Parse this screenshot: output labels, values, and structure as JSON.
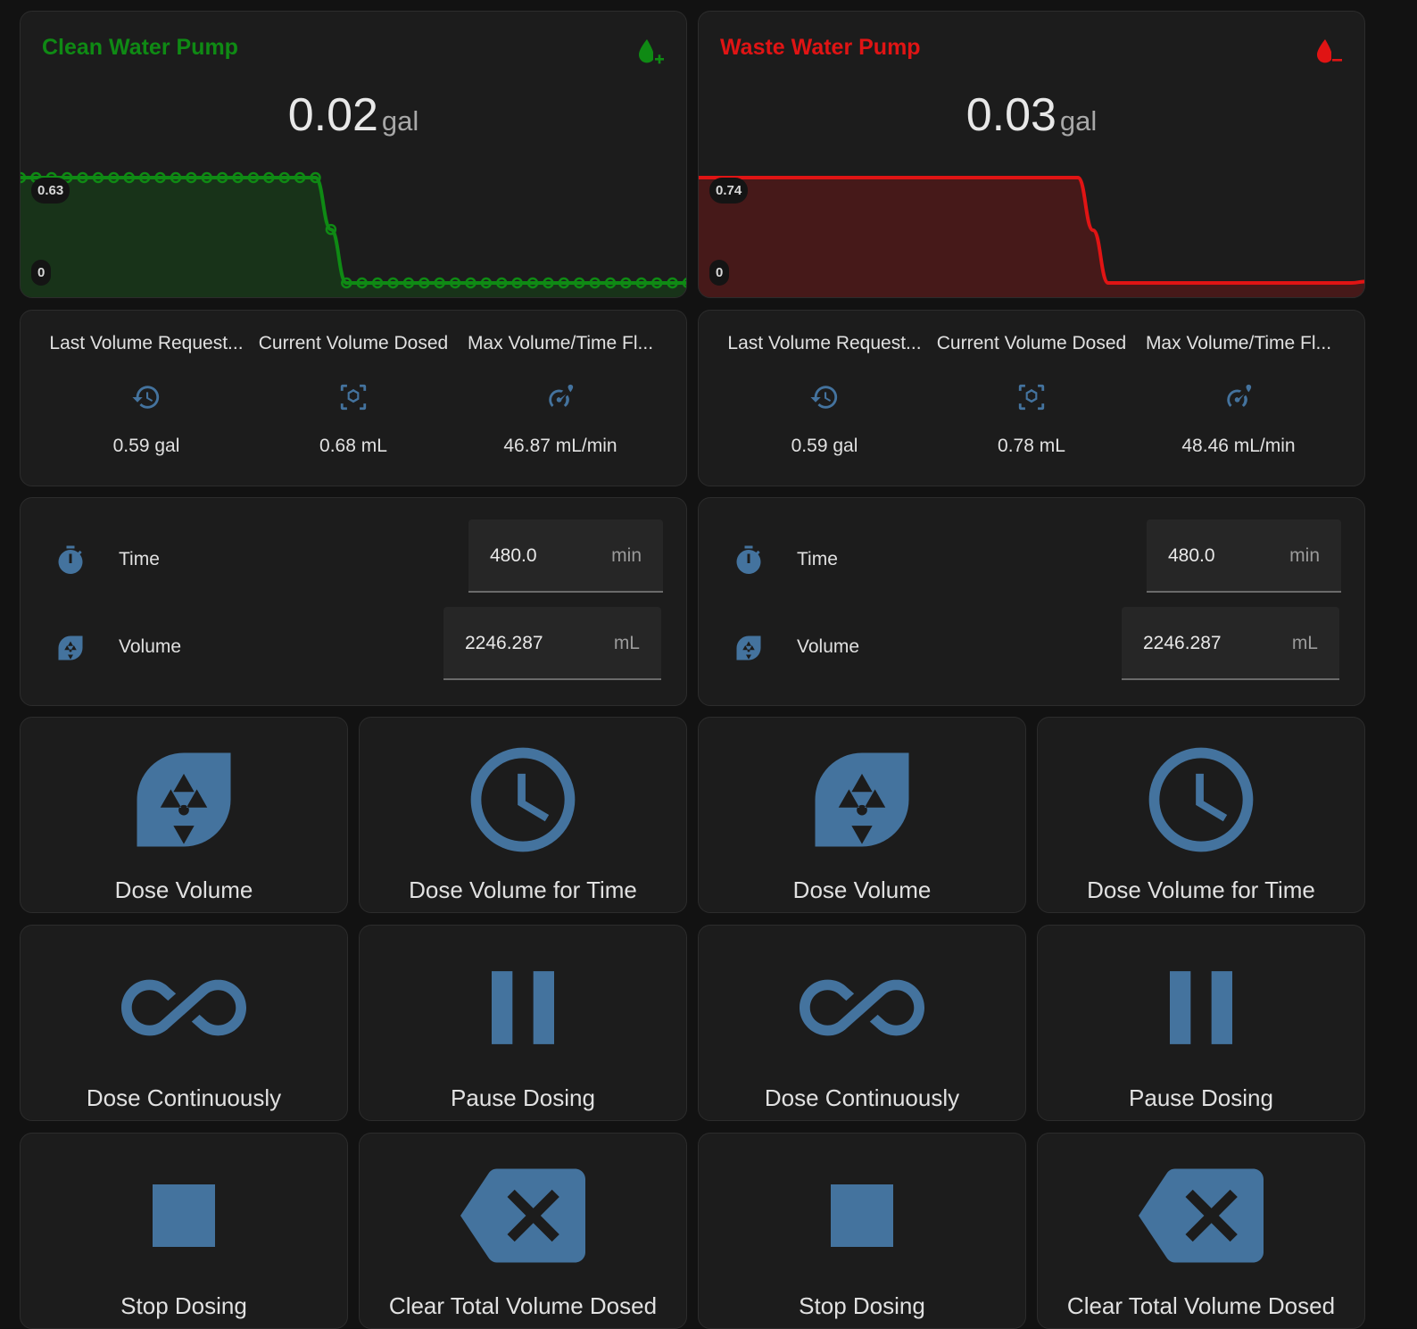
{
  "clean": {
    "title": "Clean Water Pump",
    "value": "0.02",
    "unit": "gal",
    "y_max_label": "0.63",
    "y_min_label": "0",
    "color": "#0f8a14",
    "icon": "water-plus-icon",
    "glance": [
      {
        "name": "Last Volume Request...",
        "icon": "history-icon",
        "state": "0.59 gal"
      },
      {
        "name": "Current Volume Dosed",
        "icon": "cube-scan-icon",
        "state": "0.68 mL"
      },
      {
        "name": "Max Volume/Time Fl...",
        "icon": "speedometer-icon",
        "state": "46.87 mL/min"
      }
    ],
    "time": {
      "label": "Time",
      "value": "480.0",
      "unit": "min"
    },
    "volume": {
      "label": "Volume",
      "value": "2246.287",
      "unit": "mL"
    }
  },
  "waste": {
    "title": "Waste Water Pump",
    "value": "0.03",
    "unit": "gal",
    "y_max_label": "0.74",
    "y_min_label": "0",
    "color": "#e01414",
    "icon": "water-minus-icon",
    "glance": [
      {
        "name": "Last Volume Request...",
        "icon": "history-icon",
        "state": "0.59 gal"
      },
      {
        "name": "Current Volume Dosed",
        "icon": "cube-scan-icon",
        "state": "0.78 mL"
      },
      {
        "name": "Max Volume/Time Fl...",
        "icon": "speedometer-icon",
        "state": "48.46 mL/min"
      }
    ],
    "time": {
      "label": "Time",
      "value": "480.0",
      "unit": "min"
    },
    "volume": {
      "label": "Volume",
      "value": "2246.287",
      "unit": "mL"
    }
  },
  "buttons": {
    "dose_volume": "Dose Volume",
    "dose_volume_time": "Dose Volume for Time",
    "dose_continuously": "Dose Continuously",
    "pause_dosing": "Pause Dosing",
    "stop_dosing": "Stop Dosing",
    "clear_total": "Clear Total Volume Dosed"
  },
  "colors": {
    "icon_blue": "#44739e",
    "background": "#121212",
    "card": "#1c1c1c"
  },
  "chart_data": [
    {
      "type": "line",
      "title": "Clean Water Pump",
      "ylim": [
        0,
        0.63
      ],
      "series": [
        {
          "values": [
            0.63,
            0.63,
            0.63,
            0.63,
            0.63,
            0.63,
            0.63,
            0.63,
            0.63,
            0.63,
            0.63,
            0.63,
            0.63,
            0.63,
            0.63,
            0.63,
            0.63,
            0.63,
            0.63,
            0.63,
            0.32,
            0,
            0,
            0,
            0,
            0,
            0,
            0,
            0,
            0,
            0,
            0,
            0,
            0,
            0,
            0,
            0,
            0,
            0,
            0,
            0,
            0,
            0,
            0
          ]
        }
      ]
    },
    {
      "type": "area",
      "title": "Waste Water Pump",
      "ylim": [
        0,
        0.74
      ],
      "series": [
        {
          "values": [
            0.74,
            0.74,
            0.74,
            0.74,
            0.74,
            0.74,
            0.74,
            0.74,
            0.74,
            0.74,
            0.74,
            0.74,
            0.74,
            0.74,
            0.74,
            0.74,
            0.74,
            0.74,
            0.74,
            0.74,
            0.74,
            0.74,
            0.74,
            0.74,
            0.74,
            0.74,
            0.37,
            0,
            0,
            0,
            0,
            0,
            0,
            0,
            0,
            0,
            0,
            0,
            0,
            0,
            0,
            0,
            0,
            0,
            0.01
          ]
        }
      ]
    }
  ]
}
